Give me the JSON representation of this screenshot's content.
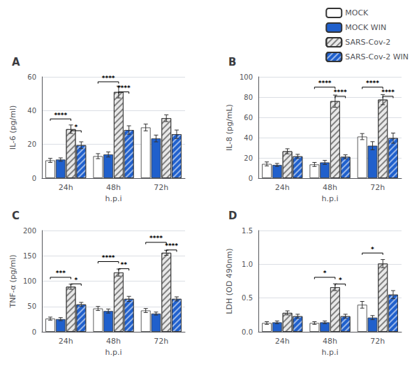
{
  "chart_data": [
    {
      "type": "bar",
      "title": "A",
      "xlabel": "h.p.i",
      "ylabel": "IL-6 (pg/ml)",
      "categories": [
        "24h",
        "48h",
        "72h"
      ],
      "ylim": [
        0,
        60
      ],
      "yticks": [
        0,
        20,
        40,
        60
      ],
      "legend": "upper right",
      "series": [
        {
          "name": "MOCK",
          "color": "#ffffff",
          "values": [
            10.5,
            13.0,
            30.0
          ],
          "errors": [
            1.2,
            1.5,
            2.0
          ]
        },
        {
          "name": "MOCK WIN",
          "color": "#2060cc",
          "values": [
            11.0,
            14.0,
            23.5
          ],
          "errors": [
            1.0,
            1.5,
            2.0
          ]
        },
        {
          "name": "SARS-Cov-2",
          "color": "#e8e8e8",
          "values": [
            29.0,
            51.0,
            35.5
          ],
          "errors": [
            2.5,
            3.5,
            2.0
          ]
        },
        {
          "name": "SARS-Cov-2 WIN",
          "color": "#2060cc",
          "values": [
            19.5,
            28.5,
            26.0
          ],
          "errors": [
            2.0,
            2.5,
            2.5
          ]
        }
      ],
      "annotations": [
        {
          "category": "24h",
          "from": "MOCK",
          "to": "SARS-Cov-2",
          "y": 34,
          "label": "****"
        },
        {
          "category": "24h",
          "from": "SARS-Cov-2",
          "to": "SARS-Cov-2 WIN",
          "y": 27,
          "label": "*"
        },
        {
          "category": "48h",
          "from": "MOCK",
          "to": "SARS-Cov-2",
          "y": 56,
          "label": "****"
        },
        {
          "category": "48h",
          "from": "SARS-Cov-2",
          "to": "SARS-Cov-2 WIN",
          "y": 50,
          "label": "****"
        }
      ]
    },
    {
      "type": "bar",
      "title": "B",
      "xlabel": "h.p.i",
      "ylabel": "IL-8 (pg/mL)",
      "categories": [
        "24h",
        "48h",
        "72h"
      ],
      "ylim": [
        0,
        100
      ],
      "yticks": [
        0,
        20,
        40,
        60,
        80,
        100
      ],
      "series": [
        {
          "name": "MOCK",
          "color": "#ffffff",
          "values": [
            14.0,
            13.5,
            41.0
          ],
          "errors": [
            2.0,
            2.0,
            3.0
          ]
        },
        {
          "name": "MOCK WIN",
          "color": "#2060cc",
          "values": [
            13.0,
            15.5,
            32.0
          ],
          "errors": [
            1.5,
            2.0,
            4.0
          ]
        },
        {
          "name": "SARS-Cov-2",
          "color": "#e8e8e8",
          "values": [
            26.5,
            76.0,
            77.5
          ],
          "errors": [
            2.5,
            6.0,
            5.0
          ]
        },
        {
          "name": "SARS-Cov-2 WIN",
          "color": "#2060cc",
          "values": [
            21.5,
            21.0,
            39.5
          ],
          "errors": [
            2.0,
            2.0,
            5.0
          ]
        }
      ],
      "annotations": [
        {
          "category": "48h",
          "from": "MOCK",
          "to": "SARS-Cov-2",
          "y": 88,
          "label": "****"
        },
        {
          "category": "48h",
          "from": "SARS-Cov-2",
          "to": "SARS-Cov-2 WIN",
          "y": 79,
          "label": "****"
        },
        {
          "category": "72h",
          "from": "MOCK",
          "to": "SARS-Cov-2",
          "y": 88,
          "label": "****"
        },
        {
          "category": "72h",
          "from": "SARS-Cov-2",
          "to": "SARS-Cov-2 WIN",
          "y": 79,
          "label": "****"
        }
      ]
    },
    {
      "type": "bar",
      "title": "C",
      "xlabel": "h.p.i",
      "ylabel": "TNF-α (pg/ml)",
      "categories": [
        "24h",
        "48h",
        "72h"
      ],
      "ylim": [
        0,
        200
      ],
      "yticks": [
        0,
        50,
        100,
        150,
        200
      ],
      "series": [
        {
          "name": "MOCK",
          "color": "#ffffff",
          "values": [
            26.0,
            46.0,
            42.0
          ],
          "errors": [
            3.0,
            4.0,
            4.0
          ]
        },
        {
          "name": "MOCK WIN",
          "color": "#2060cc",
          "values": [
            25.0,
            41.0,
            36.0
          ],
          "errors": [
            3.0,
            4.0,
            3.0
          ]
        },
        {
          "name": "SARS-Cov-2",
          "color": "#e8e8e8",
          "values": [
            89.0,
            117.0,
            156.0
          ],
          "errors": [
            5.0,
            7.0,
            5.0
          ]
        },
        {
          "name": "SARS-Cov-2 WIN",
          "color": "#2060cc",
          "values": [
            54.0,
            65.0,
            65.0
          ],
          "errors": [
            4.0,
            5.0,
            4.0
          ]
        }
      ],
      "annotations": [
        {
          "category": "24h",
          "from": "MOCK",
          "to": "SARS-Cov-2",
          "y": 104,
          "label": "***"
        },
        {
          "category": "24h",
          "from": "SARS-Cov-2",
          "to": "SARS-Cov-2 WIN",
          "y": 91,
          "label": "*"
        },
        {
          "category": "48h",
          "from": "MOCK",
          "to": "SARS-Cov-2",
          "y": 135,
          "label": "****"
        },
        {
          "category": "48h",
          "from": "SARS-Cov-2",
          "to": "SARS-Cov-2 WIN",
          "y": 121,
          "label": "**"
        },
        {
          "category": "72h",
          "from": "MOCK",
          "to": "SARS-Cov-2",
          "y": 173,
          "label": "****"
        },
        {
          "category": "72h",
          "from": "SARS-Cov-2",
          "to": "SARS-Cov-2 WIN",
          "y": 158,
          "label": "****"
        }
      ]
    },
    {
      "type": "bar",
      "title": "D",
      "xlabel": "h.p.i",
      "ylabel": "LDH (OD 490nm)",
      "categories": [
        "24h",
        "48h",
        "72h"
      ],
      "ylim": [
        0,
        1.5
      ],
      "yticks": [
        {
          "value": 0,
          "label": "0.0"
        },
        0.5,
        {
          "value": 1,
          "label": "1.0"
        },
        1.5
      ],
      "series": [
        {
          "name": "MOCK",
          "color": "#ffffff",
          "values": [
            0.13,
            0.13,
            0.4
          ],
          "errors": [
            0.02,
            0.02,
            0.05
          ]
        },
        {
          "name": "MOCK WIN",
          "color": "#2060cc",
          "values": [
            0.14,
            0.14,
            0.21
          ],
          "errors": [
            0.02,
            0.02,
            0.03
          ]
        },
        {
          "name": "SARS-Cov-2",
          "color": "#e8e8e8",
          "values": [
            0.28,
            0.66,
            1.01
          ],
          "errors": [
            0.03,
            0.05,
            0.06
          ]
        },
        {
          "name": "SARS-Cov-2 WIN",
          "color": "#2060cc",
          "values": [
            0.23,
            0.23,
            0.55
          ],
          "errors": [
            0.03,
            0.03,
            0.06
          ]
        }
      ],
      "annotations": [
        {
          "category": "48h",
          "from": "MOCK",
          "to": "SARS-Cov-2",
          "y": 0.78,
          "label": "*"
        },
        {
          "category": "48h",
          "from": "SARS-Cov-2",
          "to": "SARS-Cov-2 WIN",
          "y": 0.68,
          "label": "*"
        },
        {
          "category": "72h",
          "from": "MOCK",
          "to": "SARS-Cov-2",
          "y": 1.14,
          "label": "*"
        }
      ]
    }
  ]
}
